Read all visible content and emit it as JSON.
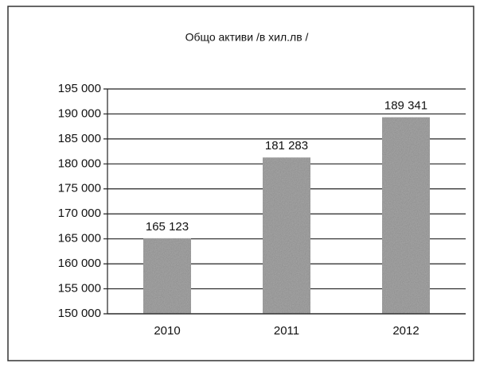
{
  "chart_data": {
    "type": "bar",
    "title": "Общо активи /в хил.лв /",
    "categories": [
      "2010",
      "2011",
      "2012"
    ],
    "values": [
      165123,
      181283,
      189341
    ],
    "value_labels": [
      "165 123",
      "181 283",
      "189 341"
    ],
    "color": "#a9a9a9",
    "ylim": [
      150000,
      195000
    ],
    "yticks": [
      {
        "value": 150000,
        "label": "150 000"
      },
      {
        "value": 155000,
        "label": "155 000"
      },
      {
        "value": 160000,
        "label": "160 000"
      },
      {
        "value": 165000,
        "label": "165 000"
      },
      {
        "value": 170000,
        "label": "170 000"
      },
      {
        "value": 175000,
        "label": "175 000"
      },
      {
        "value": 180000,
        "label": "180 000"
      },
      {
        "value": 185000,
        "label": "185 000"
      },
      {
        "value": 190000,
        "label": "190 000"
      },
      {
        "value": 195000,
        "label": "195 000"
      }
    ],
    "grid": true
  }
}
